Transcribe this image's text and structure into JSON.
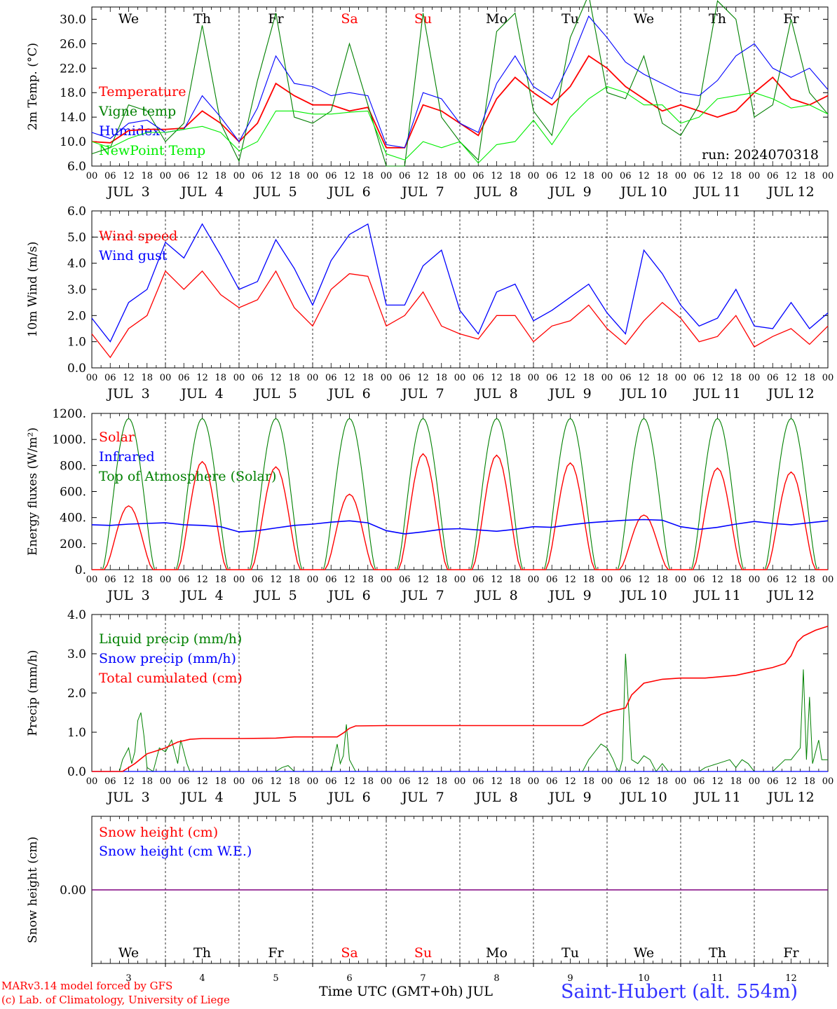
{
  "footer": {
    "model": "MARv3.14 model forced by GFS",
    "copyright": "(c) Lab. of Climatology, University of Liege",
    "xlabel": "Time UTC (GMT+0h) JUL",
    "station": "Saint-Hubert (alt. 554m)"
  },
  "colors": {
    "red": "#ff0000",
    "green": "#008000",
    "blue": "#0000ff",
    "lime": "#00ee00",
    "purple": "#800080"
  },
  "days": [
    {
      "dow": "We",
      "date": "JUL  3",
      "num": "3",
      "weekend": false
    },
    {
      "dow": "Th",
      "date": "JUL  4",
      "num": "4",
      "weekend": false
    },
    {
      "dow": "Fr",
      "date": "JUL  5",
      "num": "5",
      "weekend": false
    },
    {
      "dow": "Sa",
      "date": "JUL  6",
      "num": "6",
      "weekend": true
    },
    {
      "dow": "Su",
      "date": "JUL  7",
      "num": "7",
      "weekend": true
    },
    {
      "dow": "Mo",
      "date": "JUL  8",
      "num": "8",
      "weekend": false
    },
    {
      "dow": "Tu",
      "date": "JUL  9",
      "num": "9",
      "weekend": false
    },
    {
      "dow": "We",
      "date": "JUL 10",
      "num": "10",
      "weekend": false
    },
    {
      "dow": "Th",
      "date": "JUL 11",
      "num": "11",
      "weekend": false
    },
    {
      "dow": "Fr",
      "date": "JUL 12",
      "num": "12",
      "weekend": false
    }
  ],
  "hour_ticks": [
    "00",
    "06",
    "12",
    "18"
  ],
  "chart_data": [
    {
      "type": "line",
      "ylabel": "2m Temp. (°C)",
      "ylim": [
        6,
        32
      ],
      "yticks": [
        "6.0",
        "10.0",
        "14.0",
        "18.0",
        "22.0",
        "26.0",
        "30.0"
      ],
      "ytick_values": [
        6,
        10,
        14,
        18,
        22,
        26,
        30
      ],
      "annotation": "run: 2024070318",
      "x_hours": [
        0,
        6,
        12,
        18,
        24,
        30,
        36,
        42,
        48,
        54,
        60,
        66,
        72,
        78,
        84,
        90,
        96,
        102,
        108,
        114,
        120,
        126,
        132,
        138,
        144,
        150,
        156,
        162,
        168,
        174,
        180,
        186,
        192,
        198,
        204,
        210,
        216,
        222,
        228,
        234,
        240
      ],
      "series": [
        {
          "name": "Temperature",
          "color": "#ff0000",
          "values": [
            10.0,
            9.8,
            11.8,
            12.0,
            12.0,
            12.2,
            15.0,
            13.0,
            10.0,
            13.0,
            19.5,
            17.5,
            16.0,
            16.0,
            15.0,
            15.6,
            9.0,
            9.0,
            16.0,
            15.0,
            13.0,
            11.0,
            17.0,
            20.5,
            18.0,
            16.0,
            19.0,
            24.0,
            22.0,
            19.0,
            17.0,
            15.0,
            16.0,
            15.0,
            14.0,
            15.0,
            18.0,
            20.5,
            17.0,
            16.0,
            17.5
          ]
        },
        {
          "name": "Vigne temp",
          "color": "#008000",
          "values": [
            8.0,
            9.0,
            16.0,
            15.0,
            10.0,
            13.0,
            29.0,
            13.0,
            6.8,
            20.0,
            31.0,
            14.0,
            13.0,
            15.0,
            26.0,
            16.0,
            6.0,
            6.0,
            31.0,
            14.0,
            10.0,
            7.0,
            28.0,
            31.0,
            15.0,
            11.0,
            27.0,
            34.0,
            18.0,
            17.0,
            24.0,
            13.0,
            11.0,
            16.0,
            33.0,
            30.0,
            14.0,
            16.0,
            30.0,
            18.0,
            14.5
          ]
        },
        {
          "name": "Humidex",
          "color": "#0000ff",
          "values": [
            11.5,
            10.5,
            13.0,
            13.5,
            11.5,
            12.0,
            17.5,
            14.0,
            10.0,
            15.5,
            24.0,
            19.5,
            19.0,
            17.5,
            18.0,
            17.5,
            9.5,
            9.0,
            18.0,
            17.0,
            13.0,
            11.5,
            19.5,
            24.0,
            19.0,
            17.0,
            23.0,
            30.5,
            27.0,
            23.0,
            21.0,
            19.5,
            18.0,
            17.5,
            20.0,
            24.0,
            26.0,
            22.0,
            20.5,
            22.0,
            18.5
          ]
        },
        {
          "name": "NewPoint Temp",
          "color": "#00ee00",
          "values": [
            10.0,
            9.0,
            10.5,
            11.5,
            11.5,
            12.0,
            12.5,
            11.5,
            8.5,
            10.0,
            15.0,
            15.0,
            14.5,
            14.5,
            14.8,
            15.0,
            8.0,
            7.0,
            10.0,
            9.0,
            10.0,
            6.5,
            9.5,
            10.0,
            13.5,
            9.5,
            14.0,
            17.0,
            19.0,
            18.0,
            16.0,
            16.0,
            13.0,
            14.0,
            17.0,
            17.5,
            18.0,
            17.0,
            15.5,
            16.0,
            14.5
          ]
        }
      ]
    },
    {
      "type": "line",
      "ylabel": "10m Wind (m/s)",
      "ylim": [
        0,
        6
      ],
      "yticks": [
        "0.0",
        "1.0",
        "2.0",
        "3.0",
        "4.0",
        "5.0",
        "6.0"
      ],
      "ytick_values": [
        0,
        1,
        2,
        3,
        4,
        5,
        6
      ],
      "ref_line": 5,
      "x_hours": [
        0,
        6,
        12,
        18,
        24,
        30,
        36,
        42,
        48,
        54,
        60,
        66,
        72,
        78,
        84,
        90,
        96,
        102,
        108,
        114,
        120,
        126,
        132,
        138,
        144,
        150,
        156,
        162,
        168,
        174,
        180,
        186,
        192,
        198,
        204,
        210,
        216,
        222,
        228,
        234,
        240
      ],
      "series": [
        {
          "name": "Wind speed",
          "color": "#ff0000",
          "values": [
            1.3,
            0.4,
            1.5,
            2.0,
            3.7,
            3.0,
            3.7,
            2.8,
            2.3,
            2.6,
            3.7,
            2.3,
            1.6,
            3.0,
            3.6,
            3.5,
            1.6,
            2.0,
            2.9,
            1.6,
            1.3,
            1.1,
            2.0,
            2.0,
            1.0,
            1.6,
            1.8,
            2.4,
            1.5,
            0.9,
            1.8,
            2.5,
            1.9,
            1.0,
            1.2,
            2.0,
            0.8,
            1.2,
            1.5,
            0.9,
            1.6
          ]
        },
        {
          "name": "Wind gust",
          "color": "#0000ff",
          "values": [
            1.9,
            1.0,
            2.5,
            3.0,
            4.8,
            4.2,
            5.5,
            4.3,
            3.0,
            3.3,
            4.9,
            3.8,
            2.4,
            4.1,
            5.1,
            5.5,
            2.4,
            2.4,
            3.9,
            4.5,
            2.2,
            1.3,
            2.9,
            3.2,
            1.8,
            2.2,
            2.7,
            3.2,
            2.1,
            1.3,
            4.5,
            3.6,
            2.4,
            1.6,
            1.9,
            3.0,
            1.6,
            1.5,
            2.5,
            1.5,
            2.1
          ]
        }
      ]
    },
    {
      "type": "line",
      "ylabel": "Energy fluxes (W/m²)",
      "ylim": [
        0,
        1200
      ],
      "yticks": [
        "0.",
        "200.",
        "400.",
        "600.",
        "800.",
        "1000.",
        "1200."
      ],
      "ytick_values": [
        0,
        200,
        400,
        600,
        800,
        1000,
        1200
      ],
      "solar_peaks": [
        490,
        830,
        790,
        580,
        890,
        880,
        820,
        420,
        780,
        750
      ],
      "toa_peak": 1160,
      "series": [
        {
          "name": "Solar",
          "color": "#ff0000"
        },
        {
          "name": "Infrared",
          "color": "#0000ff",
          "values": [
            345,
            340,
            350,
            355,
            360,
            345,
            340,
            330,
            290,
            300,
            320,
            340,
            350,
            365,
            375,
            360,
            300,
            275,
            290,
            310,
            315,
            305,
            295,
            310,
            330,
            325,
            345,
            360,
            370,
            380,
            385,
            380,
            330,
            310,
            325,
            350,
            370,
            355,
            345,
            360,
            375
          ]
        },
        {
          "name": "Top of Atmosphere (Solar)",
          "color": "#008000"
        }
      ]
    },
    {
      "type": "line",
      "ylabel": "Precip (mm/h)",
      "ylim": [
        0,
        4
      ],
      "yticks": [
        "0.0",
        "1.0",
        "2.0",
        "3.0",
        "4.0"
      ],
      "ytick_values": [
        0,
        1,
        2,
        3,
        4
      ],
      "series": [
        {
          "name": "Liquid precip (mm/h)",
          "color": "#008000",
          "x_hours": [
            0,
            9,
            10,
            12,
            13,
            14,
            15,
            16,
            17,
            18,
            20,
            22,
            24,
            26,
            28,
            29,
            30,
            31,
            32,
            34,
            36,
            48,
            60,
            62,
            64,
            66,
            72,
            78,
            80,
            81,
            82,
            83,
            84,
            86,
            96,
            160,
            162,
            164,
            166,
            168,
            170,
            171,
            172,
            173,
            174,
            176,
            178,
            180,
            182,
            184,
            186,
            188,
            192,
            198,
            200,
            204,
            208,
            210,
            212,
            214,
            216,
            222,
            226,
            228,
            230,
            231,
            232,
            233,
            234,
            235,
            236,
            237,
            238,
            240
          ],
          "values": [
            0,
            0,
            0.3,
            0.6,
            0.2,
            0.5,
            1.3,
            1.5,
            0.9,
            0.1,
            0,
            0.6,
            0.5,
            0.8,
            0.2,
            0.8,
            0.5,
            0.2,
            0,
            0,
            0,
            0,
            0,
            0.1,
            0.15,
            0,
            0,
            0,
            0.7,
            0.2,
            0.4,
            1.2,
            0.3,
            0,
            0,
            0,
            0.3,
            0.5,
            0.7,
            0.6,
            0.3,
            0.1,
            0,
            0.3,
            3.0,
            0.3,
            0.2,
            0.4,
            0.3,
            0,
            0.2,
            0,
            0,
            0,
            0.1,
            0.2,
            0.3,
            0.1,
            0.3,
            0.2,
            0,
            0,
            0.3,
            0.3,
            0.5,
            0.6,
            2.6,
            0.3,
            1.9,
            0.2,
            0.5,
            0.8,
            0.3,
            0.3
          ]
        },
        {
          "name": "Snow precip (mm/h)",
          "color": "#0000ff"
        },
        {
          "name": "Total cumulated (cm)",
          "color": "#ff0000",
          "x_hours": [
            0,
            10,
            14,
            18,
            22,
            24,
            28,
            32,
            36,
            48,
            60,
            66,
            72,
            80,
            82,
            84,
            86,
            96,
            120,
            150,
            160,
            162,
            166,
            170,
            172,
            174,
            176,
            180,
            186,
            192,
            200,
            210,
            216,
            222,
            226,
            228,
            230,
            232,
            236,
            240
          ],
          "values": [
            0,
            0,
            0.2,
            0.45,
            0.55,
            0.6,
            0.75,
            0.82,
            0.84,
            0.84,
            0.85,
            0.88,
            0.88,
            0.88,
            0.98,
            1.1,
            1.16,
            1.17,
            1.17,
            1.17,
            1.17,
            1.25,
            1.45,
            1.55,
            1.58,
            1.62,
            1.95,
            2.25,
            2.35,
            2.38,
            2.38,
            2.45,
            2.55,
            2.65,
            2.75,
            2.95,
            3.3,
            3.45,
            3.6,
            3.7
          ]
        }
      ]
    },
    {
      "type": "line",
      "ylabel": "Snow height (cm)",
      "ylim": [
        -1,
        1
      ],
      "yticks": [
        "0.00"
      ],
      "ytick_values": [
        0
      ],
      "series": [
        {
          "name": "Snow height (cm)",
          "color": "#ff0000"
        },
        {
          "name": "Snow height (cm W.E.)",
          "color": "#0000ff",
          "values": [
            0,
            0
          ]
        }
      ]
    }
  ]
}
